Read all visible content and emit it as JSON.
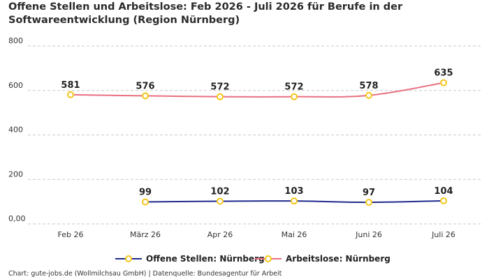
{
  "title": "Offene Stellen und Arbeitslose: Feb 2026 - Juli 2026 für Berufe in der Softwareentwicklung (Region Nürnberg)",
  "footer": "Chart: gute-jobs.de (Wollmilchsau GmbH) | Datenquelle: Bundesagentur für Arbeit",
  "chart_data": {
    "type": "line",
    "categories": [
      "Feb 26",
      "März 26",
      "Apr 26",
      "Mai 26",
      "Juni 26",
      "Juli 26"
    ],
    "y_tick_labels": [
      "0,00",
      "200",
      "400",
      "600",
      "800"
    ],
    "ylim": [
      0,
      800
    ],
    "grid": true,
    "legend_position": "bottom",
    "series": [
      {
        "name": "Offene Stellen: Nürnberg",
        "color": "#1f2a8c",
        "values": [
          null,
          99,
          102,
          103,
          97,
          104
        ],
        "labels": [
          "",
          "99",
          "102",
          "103",
          "97",
          "104"
        ]
      },
      {
        "name": "Arbeitslose: Nürnberg",
        "color": "#e8707f",
        "values": [
          581,
          576,
          572,
          572,
          578,
          635
        ],
        "labels": [
          "581",
          "576",
          "572",
          "572",
          "578",
          "635"
        ]
      }
    ],
    "marker_color": "#f5c518"
  }
}
